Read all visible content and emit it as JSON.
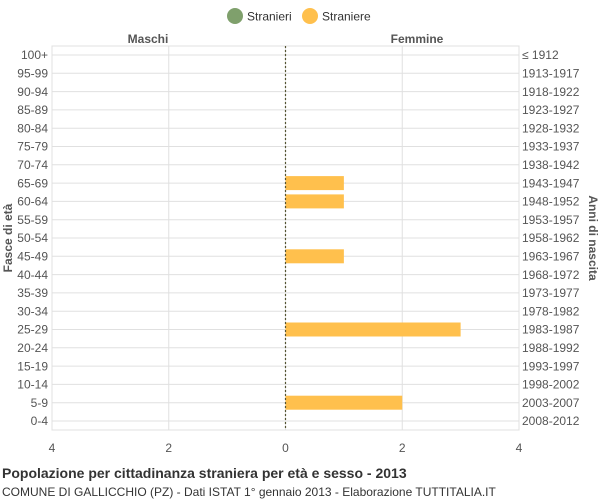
{
  "colors": {
    "maschi": "#7fa06c",
    "femmine": "#ffc04d",
    "grid": "#e0e0e0",
    "axis_text": "#555555",
    "center_line": "#555533"
  },
  "chart_data": {
    "type": "bar",
    "orientation": "horizontal-pyramid",
    "legend": {
      "position": "top-center",
      "items": [
        {
          "label": "Stranieri",
          "color": "#7fa06c"
        },
        {
          "label": "Straniere",
          "color": "#ffc04d"
        }
      ]
    },
    "left_header": "Maschi",
    "right_header": "Femmine",
    "ylabel_left": "Fasce di età",
    "ylabel_right": "Anni di nascita",
    "xlim": [
      -4,
      4
    ],
    "x_ticks": [
      -4,
      -2,
      0,
      2,
      4
    ],
    "x_tick_labels": [
      "4",
      "2",
      "0",
      "2",
      "4"
    ],
    "grid": true,
    "categories": [
      "100+",
      "95-99",
      "90-94",
      "85-89",
      "80-84",
      "75-79",
      "70-74",
      "65-69",
      "60-64",
      "55-59",
      "50-54",
      "45-49",
      "40-44",
      "35-39",
      "30-34",
      "25-29",
      "20-24",
      "15-19",
      "10-14",
      "5-9",
      "0-4"
    ],
    "birth_years": [
      "≤ 1912",
      "1913-1917",
      "1918-1922",
      "1923-1927",
      "1928-1932",
      "1933-1937",
      "1938-1942",
      "1943-1947",
      "1948-1952",
      "1953-1957",
      "1958-1962",
      "1963-1967",
      "1968-1972",
      "1973-1977",
      "1978-1982",
      "1983-1987",
      "1988-1992",
      "1993-1997",
      "1998-2002",
      "2003-2007",
      "2008-2012"
    ],
    "series": [
      {
        "name": "Stranieri",
        "side": "left",
        "values": [
          0,
          0,
          0,
          0,
          0,
          0,
          0,
          0,
          0,
          0,
          0,
          0,
          0,
          0,
          0,
          0,
          0,
          0,
          0,
          0,
          0
        ]
      },
      {
        "name": "Straniere",
        "side": "right",
        "values": [
          0,
          0,
          0,
          0,
          0,
          0,
          0,
          1,
          1,
          0,
          0,
          1,
          0,
          0,
          0,
          3,
          0,
          0,
          0,
          2,
          0
        ]
      }
    ]
  },
  "footer": {
    "title": "Popolazione per cittadinanza straniera per età e sesso - 2013",
    "subtitle": "COMUNE DI GALLICCHIO (PZ) - Dati ISTAT 1° gennaio 2013 - Elaborazione TUTTITALIA.IT"
  }
}
